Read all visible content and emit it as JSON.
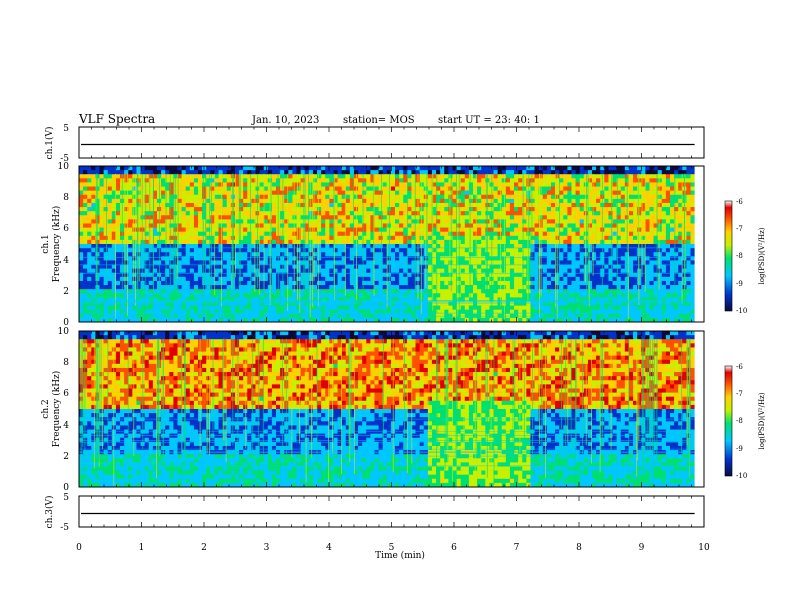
{
  "header": {
    "title": "VLF Spectra",
    "date": "Jan. 10, 2023",
    "station": "station= MOS",
    "start": "start UT =  23: 40: 1"
  },
  "colors": {
    "colormap": [
      "#0a0a40",
      "#0033cc",
      "#00c8ff",
      "#00e070",
      "#c8f000",
      "#ffd000",
      "#ff5000",
      "#e00000",
      "#ffffff"
    ],
    "trace": "#000000"
  },
  "chart_data": [
    {
      "type": "line",
      "ylabel": "ch.1(V)",
      "ylim": [
        -5,
        5
      ],
      "yticks": [
        "5",
        "-5"
      ],
      "value_level": 0
    },
    {
      "type": "heatmap",
      "ylabel": "Frequency (kHz)",
      "channel_label": "ch.1",
      "ylim": [
        0,
        10
      ],
      "yticks": [
        "0",
        "2",
        "4",
        "6",
        "8",
        "10"
      ],
      "colorbar": {
        "label": "log(PSD)(V²/Hz)",
        "range": [
          -10,
          -6
        ],
        "ticks": [
          "-6",
          "-7",
          "-8",
          "-9",
          "-10"
        ]
      },
      "background_band_khz": [
        5,
        9.5
      ],
      "burst_interval_min": [
        5.6,
        7.25
      ]
    },
    {
      "type": "heatmap",
      "ylabel": "Frequency (kHz)",
      "channel_label": "ch.2",
      "ylim": [
        0,
        10
      ],
      "yticks": [
        "0",
        "2",
        "4",
        "6",
        "8",
        "10"
      ],
      "colorbar": {
        "label": "log(PSD)(V²/Hz)",
        "range": [
          -10,
          -6
        ],
        "ticks": [
          "-6",
          "-7",
          "-8",
          "-9",
          "-10"
        ]
      },
      "background_band_khz": [
        5,
        9.5
      ],
      "burst_interval_min": [
        5.6,
        7.25
      ]
    },
    {
      "type": "line",
      "ylabel": "ch.3(V)",
      "ylim": [
        -5,
        5
      ],
      "yticks": [
        "5",
        "-5"
      ],
      "value_level": 0
    }
  ],
  "xaxis": {
    "label": "Time (min)",
    "range": [
      0,
      10
    ],
    "ticks": [
      "0",
      "1",
      "2",
      "3",
      "4",
      "5",
      "6",
      "7",
      "8",
      "9",
      "10"
    ],
    "data_end_min": 9.85
  }
}
